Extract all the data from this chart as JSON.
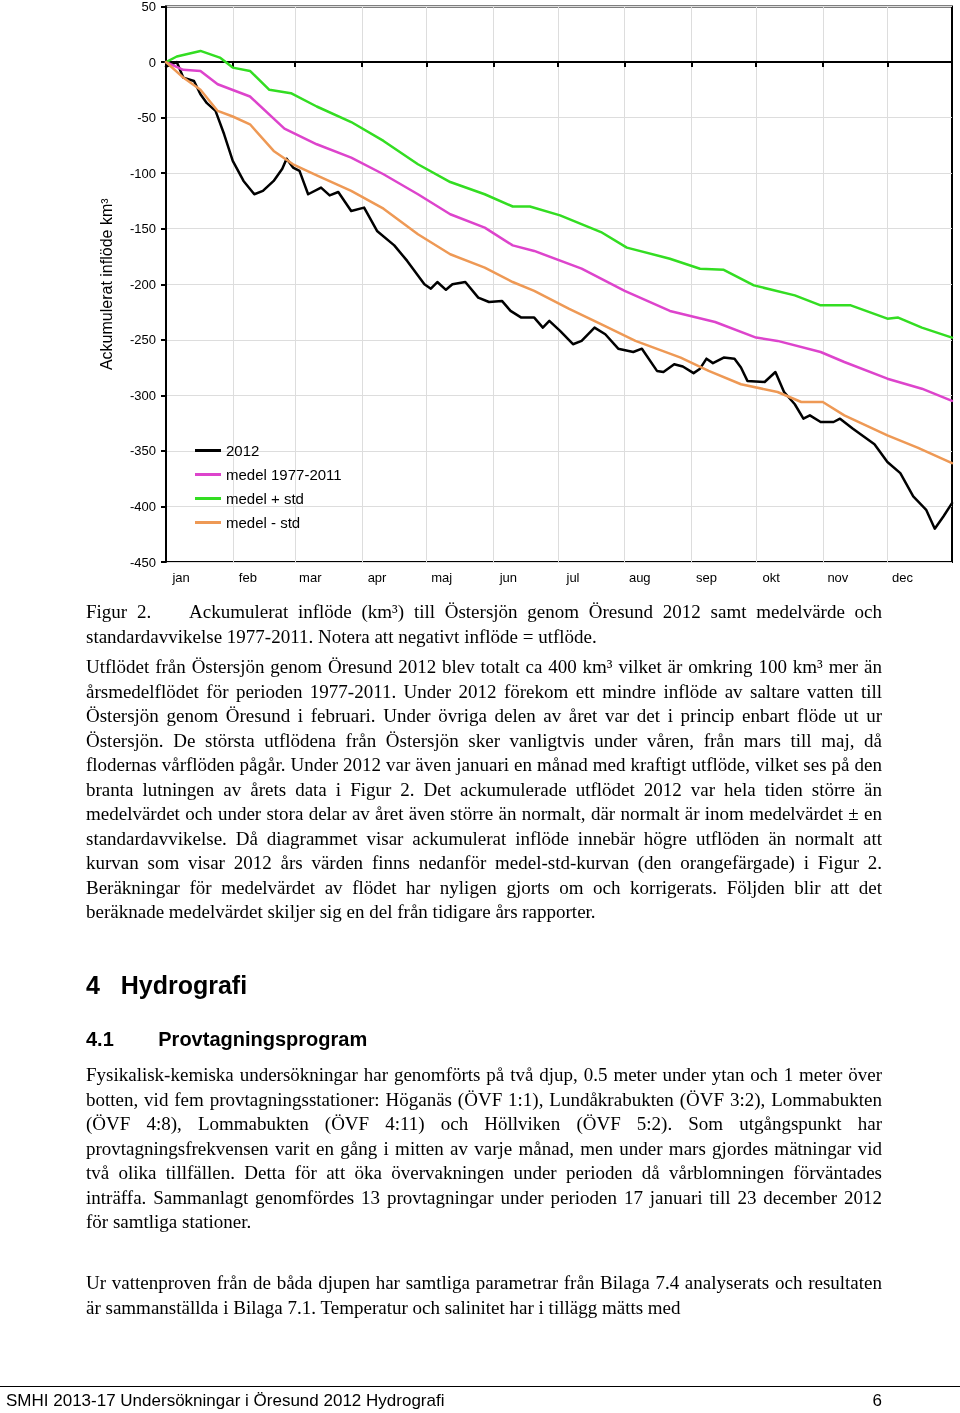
{
  "chart_data": {
    "type": "line",
    "ylabel": "Ackumulerat inflöde km³",
    "xlim": [
      "--01-01",
      "--12-31"
    ],
    "xticks": [
      {
        "value": "--01-01",
        "label": null
      },
      {
        "value": "--01-08",
        "label": "jan"
      },
      {
        "value": "--02-01",
        "label": null
      },
      {
        "value": "--02-08",
        "label": "feb"
      },
      {
        "value": "--03-01",
        "label": null
      },
      {
        "value": "--03-08",
        "label": "mar"
      },
      {
        "value": "--04-01",
        "label": null
      },
      {
        "value": "--04-08",
        "label": "apr"
      },
      {
        "value": "--05-01",
        "label": null
      },
      {
        "value": "--05-08",
        "label": "maj"
      },
      {
        "value": "--06-01",
        "label": null
      },
      {
        "value": "--06-08",
        "label": "jun"
      },
      {
        "value": "--07-01",
        "label": null
      },
      {
        "value": "--07-08",
        "label": "jul"
      },
      {
        "value": "--08-01",
        "label": null
      },
      {
        "value": "--08-08",
        "label": "aug"
      },
      {
        "value": "--09-01",
        "label": null
      },
      {
        "value": "--09-08",
        "label": "sep"
      },
      {
        "value": "--10-01",
        "label": null
      },
      {
        "value": "--10-08",
        "label": "okt"
      },
      {
        "value": "--11-01",
        "label": null
      },
      {
        "value": "--11-08",
        "label": "nov"
      },
      {
        "value": "--12-01",
        "label": null
      },
      {
        "value": "--12-08",
        "label": "dec"
      }
    ],
    "ylim": [
      -450,
      50
    ],
    "yticks": [
      -450,
      -400,
      -350,
      -300,
      -250,
      -200,
      -150,
      -100,
      -50,
      0,
      50
    ],
    "grid": true,
    "legend": "bottom left",
    "marker": "none",
    "line_style": "solid",
    "series": [
      {
        "name": "2012",
        "color": "#000000",
        "x": [
          "--01-01",
          "--01-06",
          "--01-09",
          "--01-14",
          "--01-17",
          "--01-20",
          "--01-24",
          "--01-28",
          "--02-01",
          "--02-06",
          "--02-11",
          "--02-15",
          "--02-20",
          "--02-24",
          "--02-26",
          "--02-29",
          "--03-03",
          "--03-07",
          "--03-13",
          "--03-17",
          "--03-21",
          "--03-27",
          "--04-02",
          "--04-08",
          "--04-16",
          "--04-22",
          "--04-30",
          "--05-03",
          "--05-06",
          "--05-10",
          "--05-13",
          "--05-19",
          "--05-25",
          "--05-30",
          "--06-05",
          "--06-09",
          "--06-14",
          "--06-20",
          "--06-24",
          "--06-27",
          "--07-02",
          "--07-08",
          "--07-12",
          "--07-18",
          "--07-23",
          "--07-29",
          "--08-05",
          "--08-09",
          "--08-16",
          "--08-19",
          "--08-24",
          "--08-28",
          "--09-02",
          "--09-05",
          "--09-08",
          "--09-11",
          "--09-16",
          "--09-21",
          "--09-24",
          "--09-27",
          "--10-05",
          "--10-10",
          "--10-14",
          "--10-19",
          "--10-23",
          "--10-26",
          "--10-31",
          "--11-06",
          "--11-09",
          "--11-15",
          "--11-25",
          "--12-01",
          "--12-07",
          "--12-13",
          "--12-19",
          "--12-23",
          "--12-27",
          "--12-31"
        ],
        "values": [
          -4,
          0,
          -14,
          -17,
          -29,
          -37,
          -44,
          -65,
          -89,
          -107,
          -119,
          -116,
          -107,
          -96,
          -87,
          -95,
          -98,
          -119,
          -113,
          -120,
          -117,
          -134,
          -131,
          -152,
          -165,
          -179,
          -200,
          -204,
          -198,
          -205,
          -200,
          -198,
          -212,
          -216,
          -215,
          -224,
          -230,
          -230,
          -239,
          -233,
          -242,
          -254,
          -251,
          -239,
          -245,
          -258,
          -261,
          -258,
          -278,
          -279,
          -272,
          -274,
          -280,
          -276,
          -267,
          -271,
          -266,
          -267,
          -275,
          -287,
          -288,
          -279,
          -297,
          -308,
          -321,
          -318,
          -324,
          -324,
          -321,
          -330,
          -344,
          -360,
          -370,
          -391,
          -403,
          -420,
          -409,
          -397
        ]
      },
      {
        "name": "medel 1977-2011",
        "color": "#dd44cc",
        "x": [
          "--01-01",
          "--01-09",
          "--01-17",
          "--01-25",
          "--02-09",
          "--02-25",
          "--03-11",
          "--03-27",
          "--04-11",
          "--04-27",
          "--05-12",
          "--05-28",
          "--06-10",
          "--06-20",
          "--07-12",
          "--08-01",
          "--08-22",
          "--09-12",
          "--10-01",
          "--10-11",
          "--10-31",
          "--11-11",
          "--12-01",
          "--12-17",
          "--12-31"
        ],
        "values": [
          0,
          -7,
          -8,
          -20,
          -31,
          -60,
          -74,
          -86,
          -101,
          -119,
          -137,
          -149,
          -165,
          -170,
          -186,
          -206,
          -224,
          -234,
          -248,
          -251,
          -261,
          -270,
          -285,
          -294,
          -305
        ]
      },
      {
        "name": "medel + std",
        "color": "#33dd22",
        "x": [
          "--01-01",
          "--01-06",
          "--01-17",
          "--01-26",
          "--02-01",
          "--02-09",
          "--02-18",
          "--02-28",
          "--03-11",
          "--03-27",
          "--04-11",
          "--04-27",
          "--05-12",
          "--05-28",
          "--06-10",
          "--06-18",
          "--07-02",
          "--07-21",
          "--08-02",
          "--08-22",
          "--09-05",
          "--09-16",
          "--09-30",
          "--10-19",
          "--10-31",
          "--11-14",
          "--12-01",
          "--12-06",
          "--12-17",
          "--12-31"
        ],
        "values": [
          0,
          5,
          10,
          4,
          -5,
          -8,
          -25,
          -28,
          -40,
          -54,
          -71,
          -92,
          -108,
          -119,
          -130,
          -130,
          -138,
          -153,
          -167,
          -177,
          -186,
          -187,
          -201,
          -210,
          -219,
          -219,
          -231,
          -230,
          -239,
          -248
        ]
      },
      {
        "name": "medel - std",
        "color": "#ee9955",
        "x": [
          "--01-01",
          "--01-09",
          "--01-17",
          "--01-25",
          "--02-01",
          "--02-09",
          "--02-20",
          "--02-29",
          "--03-11",
          "--03-27",
          "--04-11",
          "--04-27",
          "--05-12",
          "--05-28",
          "--06-10",
          "--06-20",
          "--07-06",
          "--07-21",
          "--08-06",
          "--08-27",
          "--09-09",
          "--09-24",
          "--10-11",
          "--10-22",
          "--11-01",
          "--11-11",
          "--12-01",
          "--12-15",
          "--12-31"
        ],
        "values": [
          0,
          -14,
          -25,
          -44,
          -49,
          -56,
          -80,
          -92,
          -102,
          -116,
          -132,
          -155,
          -173,
          -185,
          -198,
          -206,
          -222,
          -236,
          -251,
          -266,
          -278,
          -290,
          -297,
          -306,
          -306,
          -318,
          -336,
          -347,
          -361
        ]
      }
    ],
    "annotations": [
      "Figur 2.    Ackumulerat inflöde (km³) till Östersjön genom Öresund 2012 samt medelvärde och standardavvikelse 1977-2011. Notera att negativt inflöde = utflöde.",
      "Utflödet från Östersjön genom Öresund 2012 blev totalt ca 400 km³ vilket är omkring 100 km³ mer än årsmedelflödet för perioden 1977-2011. Under 2012 förekom ett mindre inflöde av saltare vatten till Östersjön genom Öresund i februari. Under övriga delen av året var det i princip enbart flöde ut ur Östersjön. De största utflödena från Östersjön sker vanligtvis under våren, från mars till maj, då flodernas vårflöden pågår. Under 2012 var även januari en månad med kraftigt utflöde, vilket ses på den branta lutningen av årets data i Figur 2. Det ackumulerade utflödet 2012 var hela tiden större än medelvärdet och under stora delar av året även större än normalt, där normalt är inom medelvärdet ± en standardavvikelse. Då diagrammet visar ackumulerat inflöde innebär högre utflöden än normalt att kurvan som visar 2012 års värden finns nedanför medel-std-kurvan (den orangefärgade) i Figur 2. Beräkningar för medelvärdet av flödet har nyligen gjorts om och korrigerats. Följden blir att det beräknade medelvärdet skiljer sig en del från tidigare års rapporter.",
      "4   Hydrografi",
      "4.1        Provtagningsprogram",
      "Fysikalisk-kemiska undersökningar har genomförts på två djup, 0.5 meter under ytan och 1 meter över botten, vid fem provtagningsstationer: Höganäs (ÖVF 1:1), Lundåkrabukten (ÖVF 3:2), Lommabukten (ÖVF 4:8), Lommabukten (ÖVF 4:11) och Höllviken (ÖVF 5:2). Som utgångspunkt har provtagningsfrekvensen varit en gång i mitten av varje månad, men under mars gjordes mätningar vid två olika tillfällen. Detta för att öka övervakningen under perioden då vårblomningen förväntades inträffa. Sammanlagt genomfördes 13 provtagningar under perioden 17 januari till 23 december 2012 för samtliga stationer.",
      "Ur vattenproven från de båda djupen har samtliga parametrar från Bilaga 7.4 analyserats och resultaten är sammanställda i Bilaga 7.1. Temperatur och salinitet har i tillägg mätts med",
      "SMHI 2013-17 Undersökningar i Öresund 2012 Hydrografi",
      "6"
    ]
  }
}
